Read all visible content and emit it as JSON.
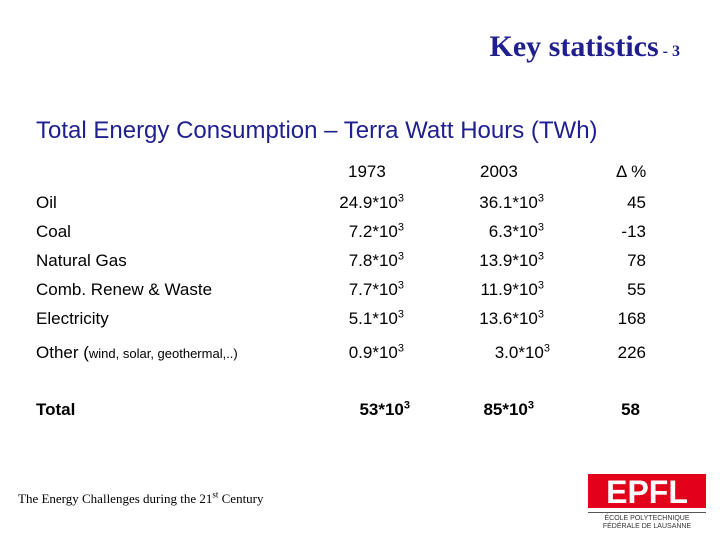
{
  "slide": {
    "title": "Key statistics",
    "title_number": "- 3",
    "subtitle": "Total Energy Consumption – Terra Watt Hours (TWh)",
    "headers": {
      "y1973": "1973",
      "y2003": "2003",
      "delta": "Δ %"
    },
    "rows": [
      {
        "label": "Oil",
        "label_note": "",
        "v1973": "24.9*10",
        "v2003": "36.1*10",
        "delta": "45"
      },
      {
        "label": "Coal",
        "label_note": "",
        "v1973": "7.2*10",
        "v2003": "6.3*10",
        "delta": "-13"
      },
      {
        "label": "Natural Gas",
        "label_note": "",
        "v1973": "7.8*10",
        "v2003": "13.9*10",
        "delta": "78"
      },
      {
        "label": "Comb. Renew & Waste",
        "label_note": "",
        "v1973": "7.7*10",
        "v2003": "11.9*10",
        "delta": "55"
      },
      {
        "label": "Electricity",
        "label_note": "",
        "v1973": "5.1*10",
        "v2003": "13.6*10",
        "delta": "168"
      },
      {
        "label": "Other (",
        "label_note": "wind, solar, geothermal,..)",
        "v1973": "0.9*10",
        "v2003": "3.0*10",
        "delta": "226"
      }
    ],
    "exponent": "3",
    "total": {
      "label": "Total",
      "v1973": "53*10",
      "v2003": "85*10",
      "delta": "58"
    },
    "footer": {
      "text": "The Energy Challenges during the 21",
      "sup": "st",
      "tail": " Century"
    },
    "logo": {
      "text_top": "EPFL",
      "line1": "ÉCOLE POLYTECHNIQUE",
      "line2": "FÉDÉRALE DE LAUSANNE",
      "color": "#e2001a"
    }
  }
}
